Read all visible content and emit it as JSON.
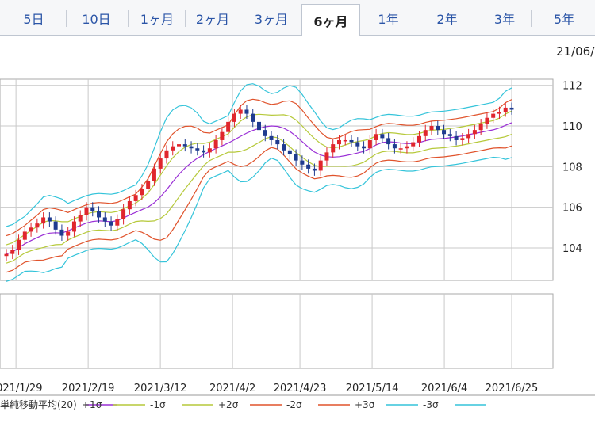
{
  "tabs": [
    {
      "label": "5日"
    },
    {
      "label": "10日"
    },
    {
      "label": "1ヶ月"
    },
    {
      "label": "2ヶ月"
    },
    {
      "label": "3ヶ月"
    },
    {
      "label": "6ヶ月",
      "active": true
    },
    {
      "label": "1年"
    },
    {
      "label": "2年"
    },
    {
      "label": "3年"
    },
    {
      "label": "5年"
    }
  ],
  "date_label": "21/06/",
  "colors": {
    "up": "#e0262d",
    "down": "#1f3b8f",
    "sma": "#9a2fd6",
    "sigma1": "#b6c93a",
    "sigma2": "#e0532c",
    "sigma3": "#35c4da",
    "grid": "#a9a9a9"
  },
  "chart_data": {
    "type": "candlestick",
    "title": "",
    "ylim": [
      102.4,
      112.3
    ],
    "yticks": [
      104,
      106,
      108,
      110,
      112
    ],
    "grid": true,
    "x_labels": [
      "2021/1/29",
      "2021/2/19",
      "2021/3/12",
      "2021/4/2",
      "2021/4/23",
      "2021/5/14",
      "2021/6/4",
      "2021/6/25"
    ],
    "legend": [
      "単純移動平均(20)",
      "+1σ",
      "-1σ",
      "+2σ",
      "-2σ",
      "+3σ",
      "-3σ"
    ],
    "close": [
      103.7,
      103.9,
      104.4,
      104.8,
      105.0,
      105.2,
      105.5,
      105.3,
      104.9,
      104.6,
      104.8,
      105.3,
      105.6,
      106.0,
      105.8,
      105.5,
      105.3,
      105.1,
      105.4,
      105.9,
      106.3,
      106.6,
      106.9,
      107.3,
      107.9,
      108.4,
      108.8,
      109.0,
      109.1,
      109.0,
      108.9,
      108.8,
      108.7,
      108.9,
      109.3,
      109.7,
      110.2,
      110.6,
      110.8,
      110.6,
      110.2,
      109.8,
      109.5,
      109.3,
      109.1,
      108.8,
      108.6,
      108.3,
      108.1,
      107.9,
      107.8,
      108.3,
      108.7,
      109.1,
      109.3,
      109.3,
      109.2,
      109.0,
      108.9,
      109.3,
      109.6,
      109.4,
      109.1,
      108.9,
      108.9,
      109.0,
      109.2,
      109.5,
      109.8,
      110.0,
      109.8,
      109.6,
      109.5,
      109.3,
      109.4,
      109.6,
      109.8,
      110.1,
      110.4,
      110.6,
      110.7,
      110.9,
      110.8
    ]
  }
}
